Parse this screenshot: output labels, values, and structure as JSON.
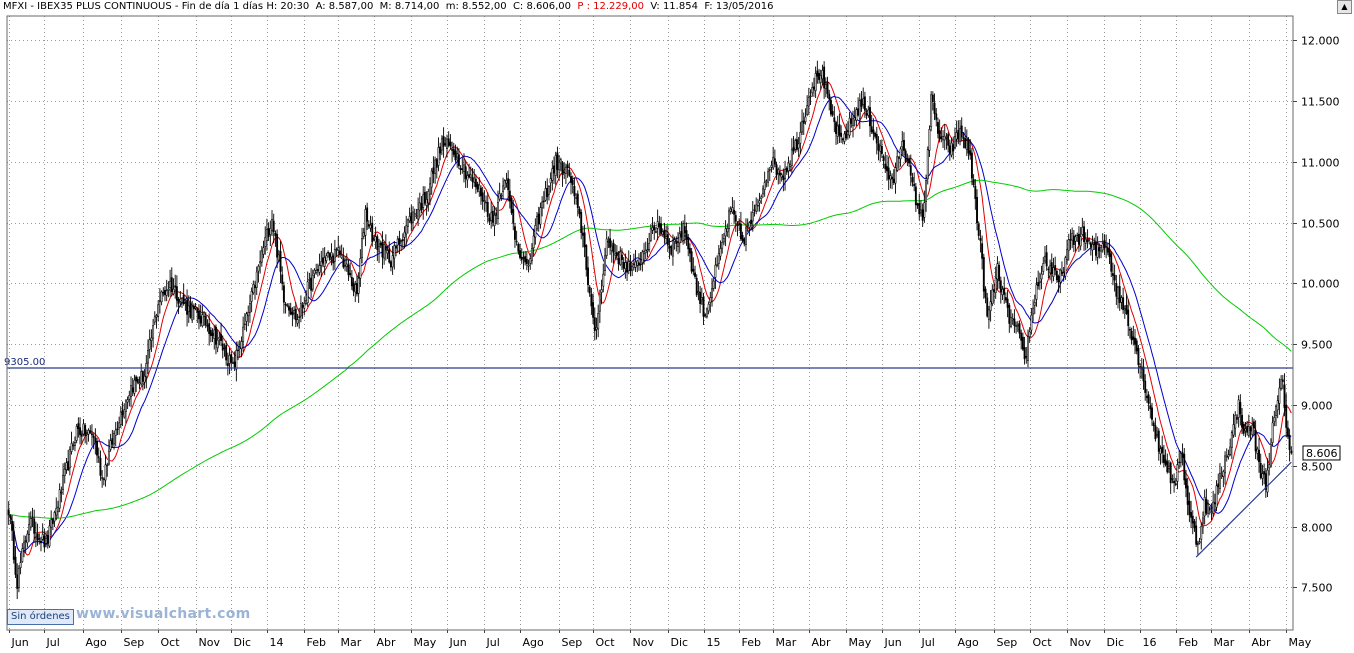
{
  "header": {
    "symbol": "MFXI",
    "sep1": " - ",
    "instrument": "IBEX35 PLUS CONTINUOUS",
    "sep2": " - ",
    "period": "Fin de día 1 días",
    "h": "H: 20:30",
    "a": "A: 8.587,00",
    "m": "M: 8.714,00",
    "mn": "m: 8.552,00",
    "c": "C: 8.606,00",
    "p": "P : 12.229,00",
    "v": "V: 11.854",
    "f": "F: 13/05/2016"
  },
  "status": "Sin órdenes",
  "watermark": "www.visualchart.com",
  "hline_label": "9305.00",
  "last_price_label": "8.606",
  "colors": {
    "price": "#000000",
    "ma_fast": "#e00000",
    "ma_mid": "#0000cc",
    "ma_slow": "#00cc00",
    "hline": "#2b3a8f",
    "trendline": "#2b3a8f",
    "grid": "#9a9a9a",
    "last_price_box": "#ffffff"
  },
  "chart_data": {
    "type": "candlestick",
    "title": "IBEX35 PLUS CONTINUOUS",
    "ylim": [
      7150,
      12200
    ],
    "y_ticks": [
      "7.500",
      "8.000",
      "8.500",
      "9.000",
      "9.500",
      "10.000",
      "10.500",
      "11.000",
      "11.500",
      "12.000"
    ],
    "y_tick_values": [
      7500,
      8000,
      8500,
      9000,
      9500,
      10000,
      10500,
      11000,
      11500,
      12000
    ],
    "x_labels": [
      "Jun",
      "Jul",
      "Ago",
      "Sep",
      "Oct",
      "Nov",
      "Dic",
      "14",
      "Feb",
      "Mar",
      "Abr",
      "May",
      "Jun",
      "Jul",
      "Ago",
      "Sep",
      "Oct",
      "Nov",
      "Dic",
      "15",
      "Feb",
      "Mar",
      "Abr",
      "May",
      "Jun",
      "Jul",
      "Ago",
      "Sep",
      "Oct",
      "Nov",
      "Dic",
      "16",
      "Feb",
      "Mar",
      "Abr",
      "May"
    ],
    "x_label_days": [
      0,
      21,
      44,
      66,
      88,
      110,
      131,
      152,
      174,
      194,
      215,
      237,
      258,
      280,
      301,
      324,
      344,
      366,
      388,
      409,
      430,
      450,
      471,
      493,
      514,
      536,
      557,
      580,
      601,
      623,
      645,
      666,
      687,
      708,
      730,
      752
    ],
    "x_range_days": [
      -1,
      756
    ],
    "close_anchors": [
      {
        "d": 0,
        "v": 8150
      },
      {
        "d": 5,
        "v": 7550
      },
      {
        "d": 12,
        "v": 8050
      },
      {
        "d": 22,
        "v": 7850
      },
      {
        "d": 30,
        "v": 8250
      },
      {
        "d": 40,
        "v": 8800
      },
      {
        "d": 50,
        "v": 8750
      },
      {
        "d": 55,
        "v": 8400
      },
      {
        "d": 65,
        "v": 8900
      },
      {
        "d": 72,
        "v": 9150
      },
      {
        "d": 80,
        "v": 9250
      },
      {
        "d": 88,
        "v": 9850
      },
      {
        "d": 95,
        "v": 10000
      },
      {
        "d": 105,
        "v": 9800
      },
      {
        "d": 115,
        "v": 9700
      },
      {
        "d": 125,
        "v": 9500
      },
      {
        "d": 132,
        "v": 9300
      },
      {
        "d": 140,
        "v": 9700
      },
      {
        "d": 150,
        "v": 10300
      },
      {
        "d": 155,
        "v": 10550
      },
      {
        "d": 162,
        "v": 9900
      },
      {
        "d": 170,
        "v": 9700
      },
      {
        "d": 176,
        "v": 9950
      },
      {
        "d": 185,
        "v": 10200
      },
      {
        "d": 195,
        "v": 10250
      },
      {
        "d": 205,
        "v": 9900
      },
      {
        "d": 210,
        "v": 10600
      },
      {
        "d": 215,
        "v": 10350
      },
      {
        "d": 225,
        "v": 10200
      },
      {
        "d": 235,
        "v": 10500
      },
      {
        "d": 245,
        "v": 10700
      },
      {
        "d": 255,
        "v": 11150
      },
      {
        "d": 262,
        "v": 11100
      },
      {
        "d": 270,
        "v": 10900
      },
      {
        "d": 278,
        "v": 10750
      },
      {
        "d": 285,
        "v": 10500
      },
      {
        "d": 292,
        "v": 10900
      },
      {
        "d": 298,
        "v": 10400
      },
      {
        "d": 305,
        "v": 10100
      },
      {
        "d": 312,
        "v": 10550
      },
      {
        "d": 322,
        "v": 11000
      },
      {
        "d": 330,
        "v": 10900
      },
      {
        "d": 338,
        "v": 10400
      },
      {
        "d": 345,
        "v": 9550
      },
      {
        "d": 352,
        "v": 10350
      },
      {
        "d": 360,
        "v": 10200
      },
      {
        "d": 368,
        "v": 10100
      },
      {
        "d": 375,
        "v": 10300
      },
      {
        "d": 382,
        "v": 10500
      },
      {
        "d": 390,
        "v": 10300
      },
      {
        "d": 398,
        "v": 10450
      },
      {
        "d": 405,
        "v": 9950
      },
      {
        "d": 410,
        "v": 9750
      },
      {
        "d": 418,
        "v": 10200
      },
      {
        "d": 425,
        "v": 10600
      },
      {
        "d": 432,
        "v": 10350
      },
      {
        "d": 440,
        "v": 10600
      },
      {
        "d": 448,
        "v": 11000
      },
      {
        "d": 456,
        "v": 10900
      },
      {
        "d": 465,
        "v": 11200
      },
      {
        "d": 472,
        "v": 11600
      },
      {
        "d": 478,
        "v": 11750
      },
      {
        "d": 484,
        "v": 11400
      },
      {
        "d": 490,
        "v": 11150
      },
      {
        "d": 495,
        "v": 11300
      },
      {
        "d": 502,
        "v": 11500
      },
      {
        "d": 508,
        "v": 11300
      },
      {
        "d": 514,
        "v": 11050
      },
      {
        "d": 520,
        "v": 10800
      },
      {
        "d": 526,
        "v": 11200
      },
      {
        "d": 532,
        "v": 10800
      },
      {
        "d": 538,
        "v": 10500
      },
      {
        "d": 543,
        "v": 11500
      },
      {
        "d": 548,
        "v": 11200
      },
      {
        "d": 555,
        "v": 11100
      },
      {
        "d": 560,
        "v": 11250
      },
      {
        "d": 565,
        "v": 11100
      },
      {
        "d": 568,
        "v": 10800
      },
      {
        "d": 572,
        "v": 10300
      },
      {
        "d": 576,
        "v": 9700
      },
      {
        "d": 582,
        "v": 10100
      },
      {
        "d": 588,
        "v": 9750
      },
      {
        "d": 594,
        "v": 9600
      },
      {
        "d": 598,
        "v": 9350
      },
      {
        "d": 604,
        "v": 9900
      },
      {
        "d": 610,
        "v": 10200
      },
      {
        "d": 618,
        "v": 10000
      },
      {
        "d": 625,
        "v": 10350
      },
      {
        "d": 632,
        "v": 10400
      },
      {
        "d": 640,
        "v": 10250
      },
      {
        "d": 646,
        "v": 10350
      },
      {
        "d": 652,
        "v": 9950
      },
      {
        "d": 658,
        "v": 9750
      },
      {
        "d": 664,
        "v": 9450
      },
      {
        "d": 670,
        "v": 9100
      },
      {
        "d": 676,
        "v": 8700
      },
      {
        "d": 682,
        "v": 8500
      },
      {
        "d": 686,
        "v": 8300
      },
      {
        "d": 690,
        "v": 8650
      },
      {
        "d": 695,
        "v": 8100
      },
      {
        "d": 700,
        "v": 7850
      },
      {
        "d": 704,
        "v": 8200
      },
      {
        "d": 708,
        "v": 8100
      },
      {
        "d": 712,
        "v": 8350
      },
      {
        "d": 716,
        "v": 8550
      },
      {
        "d": 720,
        "v": 8750
      },
      {
        "d": 724,
        "v": 9000
      },
      {
        "d": 728,
        "v": 8750
      },
      {
        "d": 732,
        "v": 8850
      },
      {
        "d": 736,
        "v": 8500
      },
      {
        "d": 740,
        "v": 8350
      },
      {
        "d": 744,
        "v": 8800
      },
      {
        "d": 748,
        "v": 9100
      },
      {
        "d": 750,
        "v": 9200
      },
      {
        "d": 752,
        "v": 8850
      },
      {
        "d": 754,
        "v": 8650
      },
      {
        "d": 755,
        "v": 8606
      }
    ],
    "horizontal_line": {
      "value": 9305,
      "label": "9305.00"
    },
    "trend_line": {
      "from": {
        "d": 699,
        "v": 7750
      },
      "to": {
        "d": 755,
        "v": 8530
      }
    },
    "last_value": 8606,
    "series": [
      {
        "type": "candles"
      },
      {
        "type": "moving_average",
        "color": "#e00000",
        "period": 10
      },
      {
        "type": "moving_average",
        "color": "#0000cc",
        "period": 20
      },
      {
        "type": "moving_average",
        "color": "#00cc00",
        "period": 200
      }
    ],
    "grid": true,
    "grid_style": "dotted"
  }
}
